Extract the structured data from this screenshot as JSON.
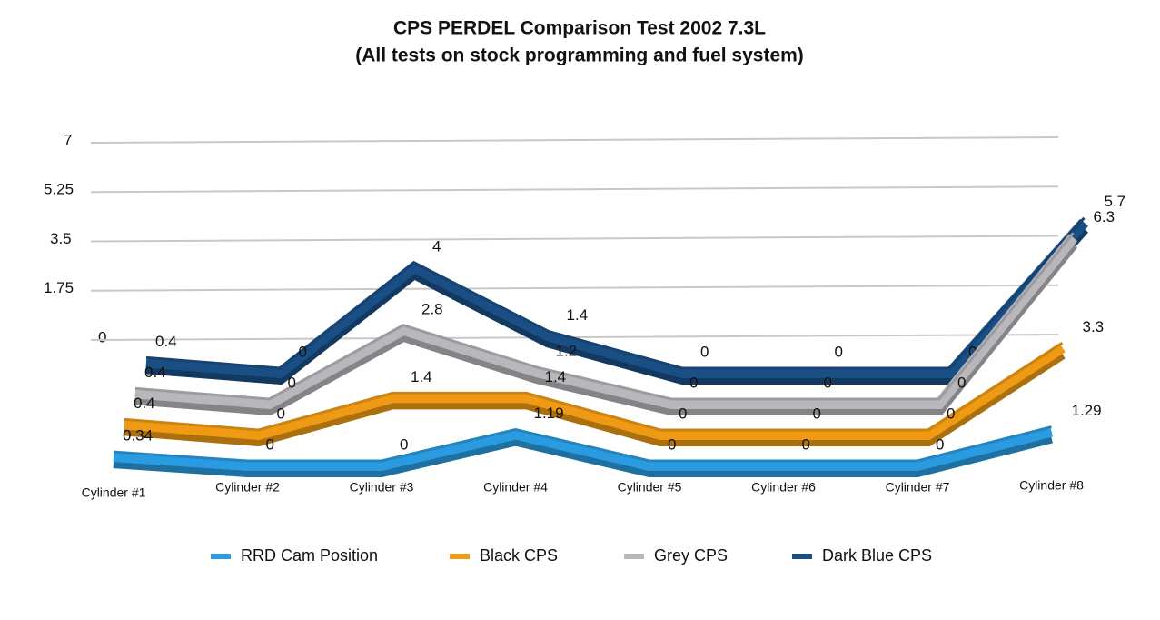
{
  "chart_data": {
    "type": "line3d",
    "title": "CPS PERDEL Comparison Test 2002 7.3L",
    "subtitle": "(All tests on stock programming and fuel system)",
    "categories": [
      "Cylinder #1",
      "Cylinder #2",
      "Cylinder #3",
      "Cylinder #4",
      "Cylinder #5",
      "Cylinder #6",
      "Cylinder #7",
      "Cylinder #8"
    ],
    "series": [
      {
        "name": "RRD Cam Position",
        "color": "#2a9be0",
        "values": [
          0.34,
          0,
          0,
          1.19,
          0,
          0,
          0,
          1.29
        ]
      },
      {
        "name": "Black CPS",
        "color": "#ef9a14",
        "values": [
          0.4,
          0,
          1.4,
          1.4,
          0,
          0,
          0,
          3.3
        ]
      },
      {
        "name": "Grey CPS",
        "color": "#b8b8bc",
        "values": [
          0.4,
          0,
          2.8,
          1.2,
          0,
          0,
          0,
          6.3
        ]
      },
      {
        "name": "Dark Blue CPS",
        "color": "#1a4f86",
        "values": [
          0.4,
          0,
          4,
          1.4,
          0,
          0,
          0,
          5.7
        ]
      }
    ],
    "ylim": [
      0,
      7
    ],
    "yticks": [
      0,
      1.75,
      3.5,
      5.25,
      7
    ],
    "grid": true,
    "legend": "bottom"
  }
}
